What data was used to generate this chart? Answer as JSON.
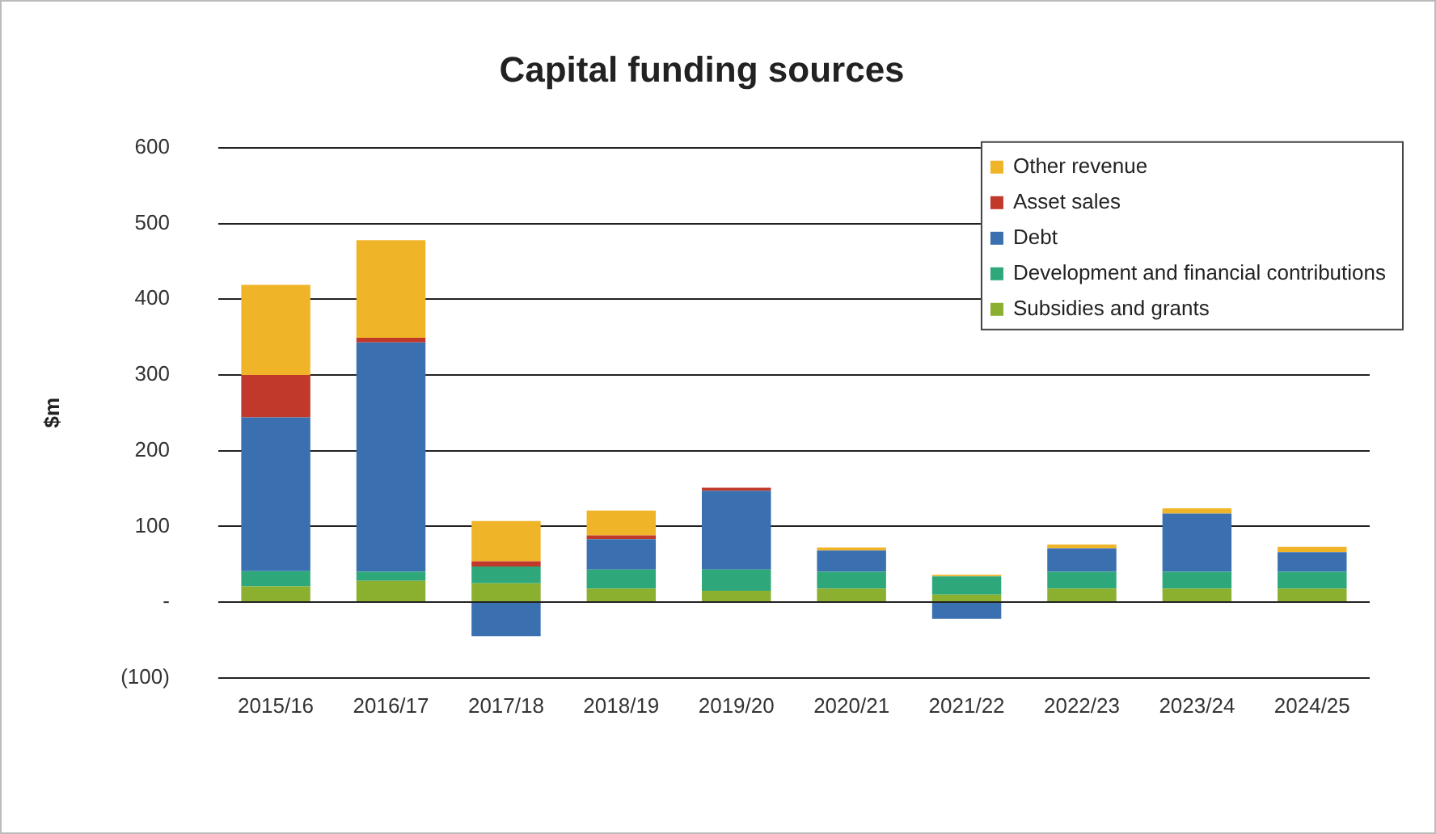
{
  "chart_data": {
    "type": "bar",
    "title": "Capital funding sources",
    "ylabel": "$m",
    "categories": [
      "2015/16",
      "2016/17",
      "2017/18",
      "2018/19",
      "2019/20",
      "2020/21",
      "2021/22",
      "2022/23",
      "2023/24",
      "2024/25"
    ],
    "stacked": true,
    "series": [
      {
        "name": "Subsidies and grants",
        "color": "#8bb030",
        "values": [
          21,
          28,
          25,
          18,
          15,
          18,
          10,
          18,
          18,
          18
        ]
      },
      {
        "name": "Development and financial contributions",
        "color": "#2ea87a",
        "values": [
          20,
          12,
          22,
          25,
          28,
          22,
          24,
          22,
          22,
          22
        ]
      },
      {
        "name": "Debt",
        "color": "#3a6fb0",
        "values": [
          203,
          303,
          -45,
          40,
          104,
          28,
          -22,
          31,
          77,
          26
        ]
      },
      {
        "name": "Asset sales",
        "color": "#c0392b",
        "values": [
          56,
          6,
          7,
          5,
          4,
          null,
          null,
          null,
          null,
          null
        ]
      },
      {
        "name": "Other revenue",
        "color": "#f0b429",
        "values": [
          119,
          129,
          53,
          33,
          null,
          4,
          2,
          5,
          7,
          7
        ]
      }
    ],
    "ylim": [
      -100,
      600
    ],
    "yticks": [
      {
        "value": -100,
        "label": "(100)"
      },
      {
        "value": 0,
        "label": "-"
      },
      100,
      200,
      300,
      400,
      500,
      600
    ],
    "grid": "y",
    "legend": "top right"
  }
}
